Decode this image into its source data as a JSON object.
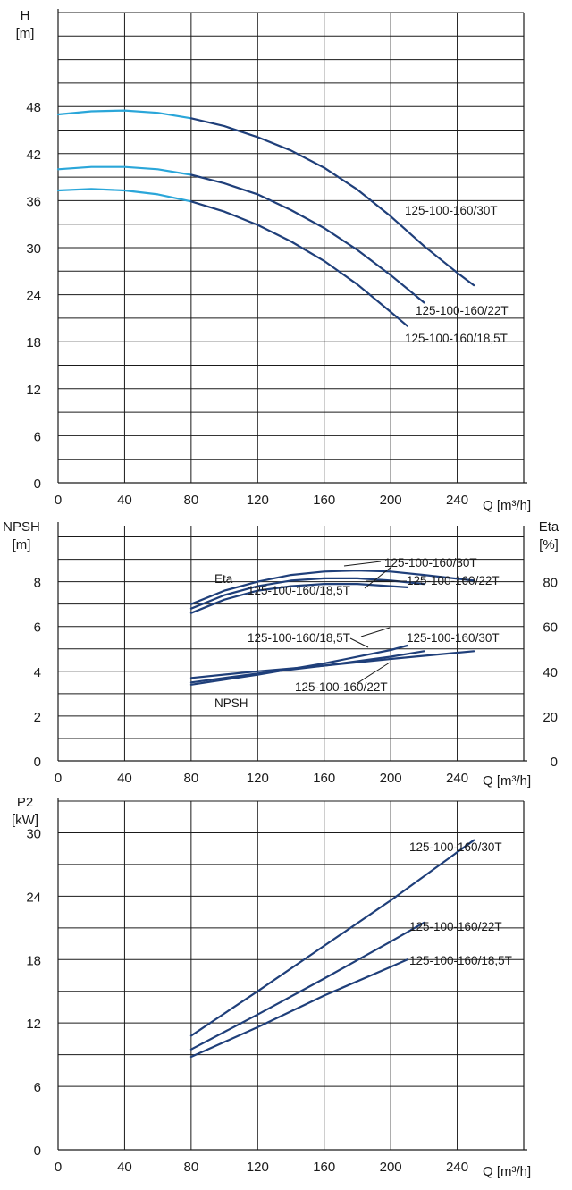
{
  "colors": {
    "curve_dark": "#1f3f7a",
    "curve_light": "#2aa6d9",
    "ink": "#1a1a1a"
  },
  "chart_data": [
    {
      "id": "head",
      "type": "line",
      "ylabel_lines": [
        "H",
        "[m]"
      ],
      "xlabel": "Q [m³/h]",
      "xlim": [
        0,
        280
      ],
      "ylim": [
        0,
        60
      ],
      "xticks": [
        0,
        40,
        80,
        120,
        160,
        200,
        240
      ],
      "yticks": [
        0,
        6,
        12,
        18,
        24,
        30,
        36,
        42,
        48
      ],
      "light_until_x": 80,
      "series": [
        {
          "name": "125-100-160/30T",
          "x": [
            0,
            20,
            40,
            60,
            80,
            100,
            120,
            140,
            160,
            180,
            200,
            220,
            240,
            250
          ],
          "y": [
            47.0,
            47.4,
            47.5,
            47.2,
            46.5,
            45.5,
            44.1,
            42.4,
            40.2,
            37.4,
            34.0,
            30.2,
            26.8,
            25.2
          ]
        },
        {
          "name": "125-100-160/22T",
          "x": [
            0,
            20,
            40,
            60,
            80,
            100,
            120,
            140,
            160,
            180,
            200,
            220
          ],
          "y": [
            40.0,
            40.3,
            40.3,
            40.0,
            39.3,
            38.2,
            36.8,
            34.8,
            32.5,
            29.7,
            26.5,
            23.0
          ]
        },
        {
          "name": "125-100-160/18,5T",
          "x": [
            0,
            20,
            40,
            60,
            80,
            100,
            120,
            140,
            160,
            180,
            200,
            210
          ],
          "y": [
            37.3,
            37.5,
            37.3,
            36.8,
            35.9,
            34.6,
            32.9,
            30.8,
            28.3,
            25.3,
            21.8,
            20.0
          ]
        }
      ]
    },
    {
      "id": "npsh_eta",
      "type": "line",
      "ylabel_lines": [
        "NPSH",
        "[m]"
      ],
      "ylabel_right_lines": [
        "Eta",
        "[%]"
      ],
      "xlabel": "Q [m³/h]",
      "xlim": [
        0,
        280
      ],
      "ylim": [
        0,
        10.5
      ],
      "ylim_right": [
        0,
        105
      ],
      "xticks": [
        0,
        40,
        80,
        120,
        160,
        200,
        240
      ],
      "yticks": [
        0,
        2,
        4,
        6,
        8
      ],
      "yticks_right": [
        0,
        20,
        40,
        60,
        80
      ],
      "annotations": [
        "Eta",
        "NPSH"
      ],
      "eta_series": [
        {
          "name": "125-100-160/30T",
          "x": [
            80,
            100,
            120,
            140,
            160,
            180,
            200,
            220,
            250
          ],
          "y": [
            70,
            76,
            80,
            83,
            84.5,
            85,
            84.5,
            83,
            80.5
          ]
        },
        {
          "name": "125-100-160/22T",
          "x": [
            80,
            100,
            120,
            140,
            160,
            180,
            200,
            220
          ],
          "y": [
            68,
            74,
            78,
            80.5,
            81.5,
            81.5,
            80.5,
            79
          ]
        },
        {
          "name": "125-100-160/18,5T",
          "x": [
            80,
            100,
            120,
            140,
            160,
            180,
            200,
            210
          ],
          "y": [
            66,
            72,
            76,
            78,
            79,
            79,
            78,
            77.5
          ]
        }
      ],
      "npsh_series": [
        {
          "name": "125-100-160/30T",
          "x": [
            80,
            120,
            160,
            200,
            250
          ],
          "y": [
            3.7,
            4.0,
            4.25,
            4.55,
            4.9
          ]
        },
        {
          "name": "125-100-160/22T",
          "x": [
            80,
            120,
            160,
            200,
            220
          ],
          "y": [
            3.5,
            3.9,
            4.25,
            4.65,
            4.9
          ]
        },
        {
          "name": "125-100-160/18,5T",
          "x": [
            80,
            120,
            160,
            200,
            210
          ],
          "y": [
            3.4,
            3.85,
            4.35,
            4.95,
            5.15
          ]
        }
      ]
    },
    {
      "id": "power",
      "type": "line",
      "ylabel_lines": [
        "P2",
        "[kW]"
      ],
      "xlabel": "Q [m³/h]",
      "xlim": [
        0,
        280
      ],
      "ylim": [
        0,
        33
      ],
      "xticks": [
        0,
        40,
        80,
        120,
        160,
        200,
        240
      ],
      "yticks": [
        0,
        6,
        12,
        18,
        24,
        30
      ],
      "series": [
        {
          "name": "125-100-160/30T",
          "x": [
            80,
            120,
            160,
            200,
            250
          ],
          "y": [
            10.8,
            15.0,
            19.3,
            23.6,
            29.3
          ]
        },
        {
          "name": "125-100-160/22T",
          "x": [
            80,
            120,
            160,
            200,
            220
          ],
          "y": [
            9.5,
            12.8,
            16.2,
            19.7,
            21.5
          ]
        },
        {
          "name": "125-100-160/18,5T",
          "x": [
            80,
            120,
            160,
            200,
            210
          ],
          "y": [
            8.8,
            11.6,
            14.6,
            17.3,
            18.0
          ]
        }
      ]
    }
  ]
}
